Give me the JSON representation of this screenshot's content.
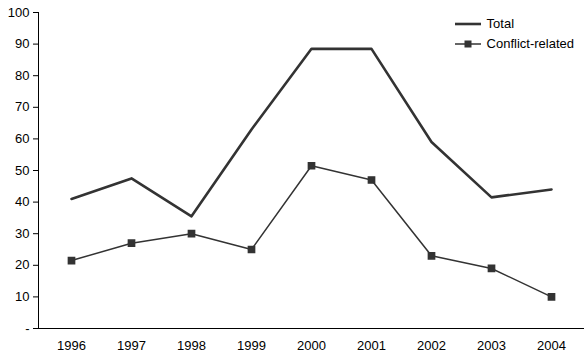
{
  "chart_data": {
    "type": "line",
    "categories": [
      "1996",
      "1997",
      "1998",
      "1999",
      "2000",
      "2001",
      "2002",
      "2003",
      "2004"
    ],
    "series": [
      {
        "name": "Total",
        "color": "#333333",
        "marker": "none",
        "values": [
          41,
          47.5,
          35.5,
          63,
          88.5,
          88.5,
          59,
          41.5,
          44
        ]
      },
      {
        "name": "Conflict-related",
        "color": "#333333",
        "marker": "square",
        "values": [
          21.5,
          27,
          30,
          25,
          51.5,
          47,
          23,
          19,
          10
        ]
      }
    ],
    "ylim": [
      0,
      100
    ],
    "yticks": [
      {
        "value": 0,
        "label": "-"
      },
      10,
      20,
      30,
      40,
      50,
      60,
      70,
      80,
      90,
      100
    ],
    "grid": false,
    "legend": "top-right"
  }
}
